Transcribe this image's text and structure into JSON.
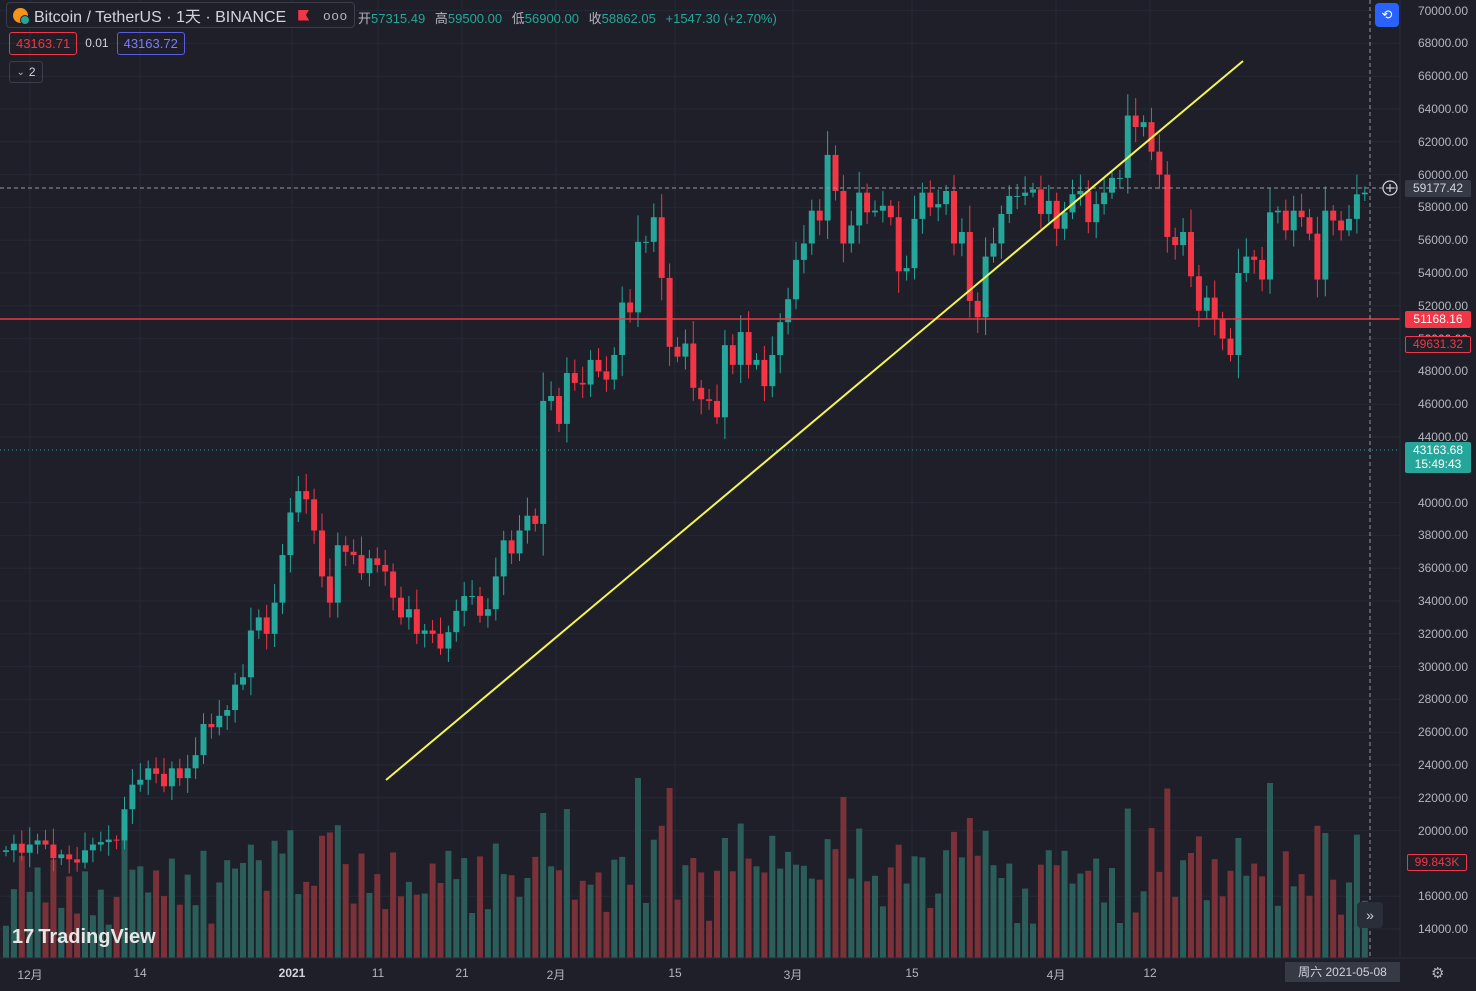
{
  "header": {
    "symbol_title": "Bitcoin / TetherUS · 1天 · BINANCE",
    "more_label": "ooo",
    "ohlc": {
      "open_label": "开",
      "open": "57315.49",
      "high_label": "高",
      "high": "59500.00",
      "low_label": "低",
      "low": "56900.00",
      "close_label": "收",
      "close": "58862.05",
      "change": "+1547.30 (+2.70%)"
    },
    "sell_price": "43163.71",
    "spread": "0.01",
    "buy_price": "43163.72",
    "indicator_count": "2"
  },
  "price_axis": {
    "ticks": [
      "70000.00",
      "68000.00",
      "66000.00",
      "64000.00",
      "62000.00",
      "60000.00",
      "58000.00",
      "56000.00",
      "54000.00",
      "52000.00",
      "50000.00",
      "48000.00",
      "46000.00",
      "44000.00",
      "40000.00",
      "38000.00",
      "36000.00",
      "34000.00",
      "32000.00",
      "30000.00",
      "28000.00",
      "26000.00",
      "24000.00",
      "22000.00",
      "20000.00",
      "16000.00",
      "14000.00"
    ],
    "crosshair_price": "59177.42",
    "red_line_price": "51168.16",
    "alert_price": "49631.32",
    "last_price": "43163.68",
    "countdown": "15:49:43",
    "volume_label": "99.843K"
  },
  "time_axis": {
    "labels": [
      "12月",
      "14",
      "2021",
      "11",
      "21",
      "2月",
      "15",
      "3月",
      "15",
      "4月",
      "12"
    ],
    "crosshair_date": "周六 2021-05-08"
  },
  "branding": {
    "logo_text": "TradingView",
    "logo_mark": "17"
  },
  "colors": {
    "up": "#26a69a",
    "down": "#f23645",
    "trendline": "#f5f552",
    "background": "#1e1f29"
  },
  "chart_data": {
    "type": "candlestick",
    "start_date": "2020-12-01",
    "end_date": "2021-05-08",
    "ylim": [
      13000,
      70500
    ],
    "candles": []
  }
}
